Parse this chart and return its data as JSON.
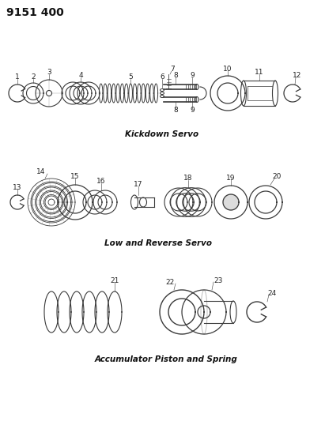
{
  "title": "9151 400",
  "title_fontsize": 10,
  "title_fontweight": "bold",
  "bg_color": "#ffffff",
  "line_color": "#3a3a3a",
  "section1_label": "Kickdown Servo",
  "section2_label": "Low and Reverse Servo",
  "section3_label": "Accumulator Piston and Spring",
  "label_fontsize": 7.5,
  "label_style": "italic",
  "number_fontsize": 6.5
}
